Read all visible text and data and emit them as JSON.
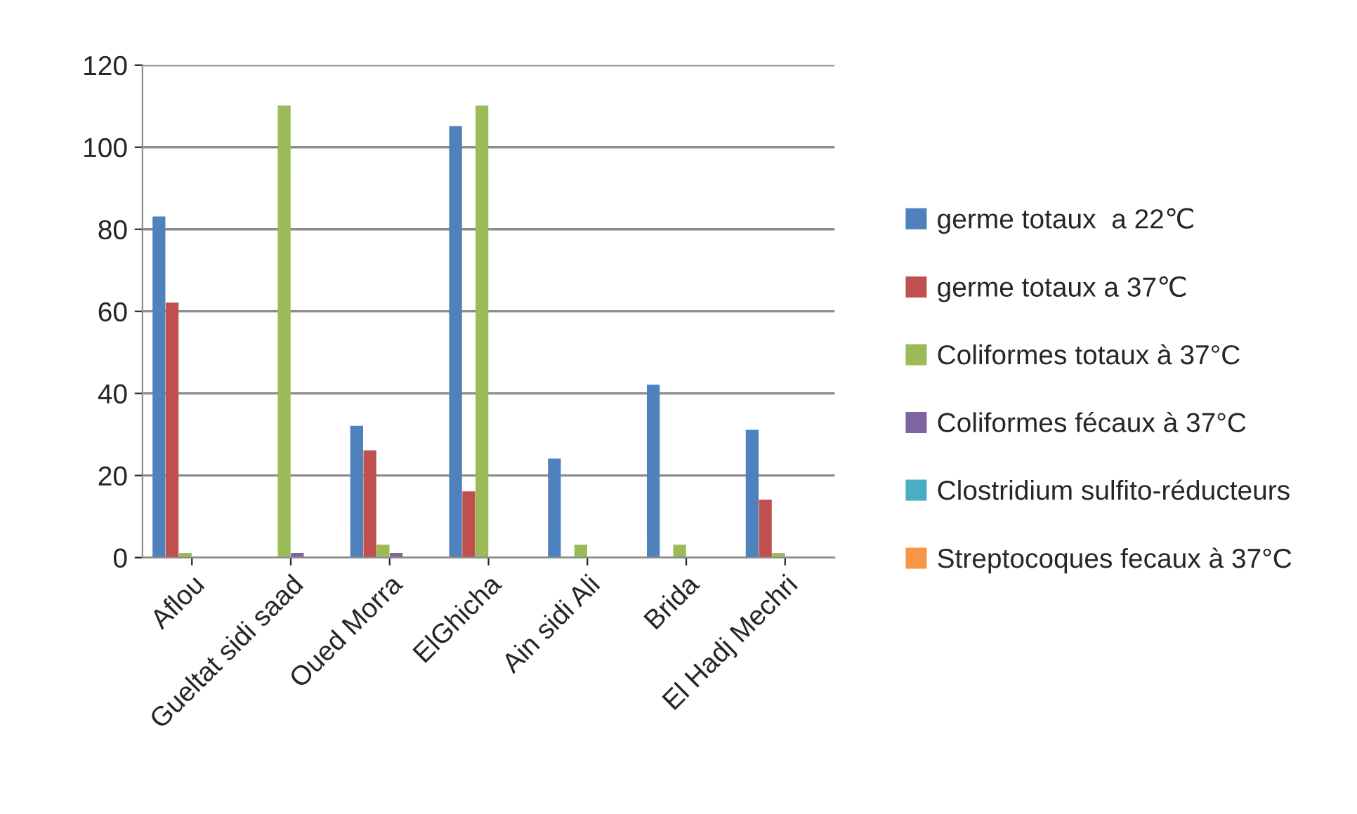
{
  "chart_data": {
    "type": "bar",
    "categories": [
      "Aflou",
      "Gueltat sidi saad",
      "Oued Morra",
      "ElGhicha",
      "Ain sidi Ali",
      "Brida",
      "El Hadj Mechri"
    ],
    "series": [
      {
        "name": "germe totaux  a 22℃",
        "color": "#4f81bd",
        "values": [
          83,
          0,
          32,
          105,
          24,
          42,
          31
        ]
      },
      {
        "name": "germe totaux a 37℃",
        "color": "#c0504d",
        "values": [
          62,
          0,
          26,
          16,
          0,
          0,
          14
        ]
      },
      {
        "name": "Coliformes totaux à 37°C",
        "color": "#9bbb59",
        "values": [
          1,
          110,
          3,
          110,
          3,
          3,
          1
        ]
      },
      {
        "name": "Coliformes fécaux à 37°C",
        "color": "#8064a2",
        "values": [
          0,
          1,
          1,
          0,
          0,
          0,
          0
        ]
      },
      {
        "name": "Clostridium sulfito-réducteurs",
        "color": "#4bacc6",
        "values": [
          0,
          0,
          0,
          0,
          0,
          0,
          0
        ]
      },
      {
        "name": "Streptocoques fecaux à 37°C",
        "color": "#f79646",
        "values": [
          0,
          0,
          0,
          0,
          0,
          0,
          0
        ]
      }
    ],
    "ylim": [
      0,
      120
    ],
    "yticks": [
      0,
      20,
      40,
      60,
      80,
      100,
      120
    ],
    "grid": "y",
    "legend": "right"
  }
}
